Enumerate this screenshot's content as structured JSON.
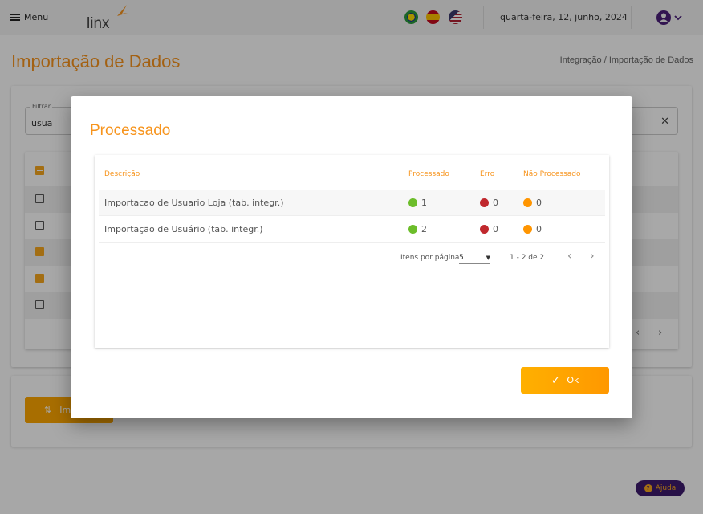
{
  "header": {
    "menu_label": "Menu",
    "logo_text": "linx",
    "date": "quarta-feira, 12, junho, 2024",
    "flags": [
      "brazil-flag-icon",
      "spain-flag-icon",
      "usa-flag-icon"
    ]
  },
  "page": {
    "title": "Importação de Dados",
    "breadcrumb": {
      "parent": "Integração",
      "separator": "/",
      "current": "Importação de Dados"
    },
    "filter": {
      "label": "Filtrar",
      "value": "usua"
    },
    "import_button": "Importar",
    "checkboxes": [
      "indeterminate",
      "unchecked",
      "unchecked",
      "checked",
      "checked",
      "unchecked"
    ]
  },
  "modal": {
    "title": "Processado",
    "columns": [
      "Descrição",
      "Processado",
      "Erro",
      "Não Processado"
    ],
    "rows": [
      {
        "descricao": "Importacao de Usuario Loja (tab. integr.)",
        "processado": "1",
        "erro": "0",
        "nao_processado": "0"
      },
      {
        "descricao": "Importação de Usuário (tab. integr.)",
        "processado": "2",
        "erro": "0",
        "nao_processado": "0"
      }
    ],
    "pagination": {
      "items_label": "Itens por página",
      "page_size": "5",
      "range": "1 - 2 de 2"
    },
    "ok_label": "Ok"
  },
  "help_label": "Ajuda",
  "colors": {
    "accent": "#f7941d",
    "success": "#6cbd2a",
    "error": "#c0282d",
    "warning": "#ff9500",
    "brand_purple": "#3d1a6e"
  }
}
